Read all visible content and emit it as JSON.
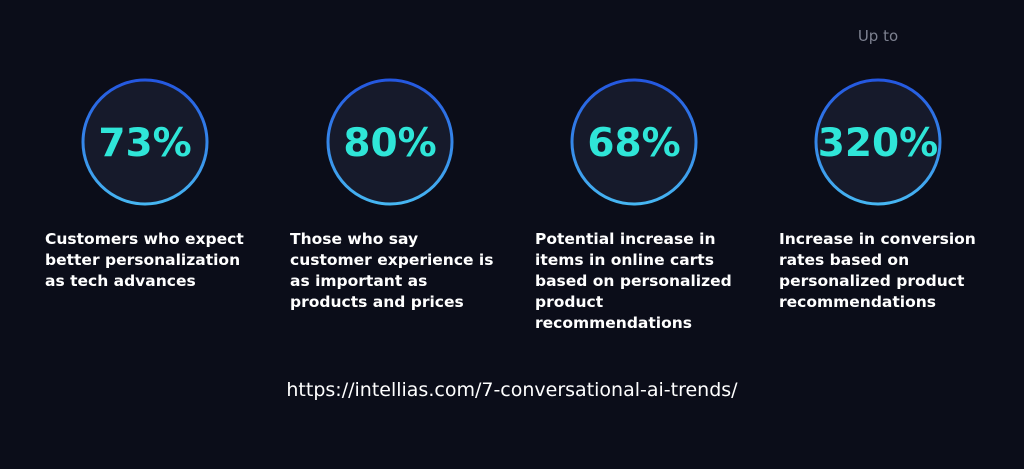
{
  "stats": [
    {
      "value": "73%",
      "description": [
        "Customers who expect",
        "better personalization",
        "as tech advances"
      ]
    },
    {
      "value": "80%",
      "description": [
        "Those who say",
        "customer experience is",
        "as important as",
        "products and prices"
      ]
    },
    {
      "value": "68%",
      "description": [
        "Potential increase in",
        "items in online carts",
        "based on personalized",
        "product",
        "recommendations"
      ]
    },
    {
      "prefix": "Up to",
      "value": "320%",
      "description": [
        "Increase in conversion",
        "rates based on",
        "personalized product",
        "recommendations"
      ]
    }
  ],
  "source": "https://intellias.com/7-conversational-ai-trends/"
}
